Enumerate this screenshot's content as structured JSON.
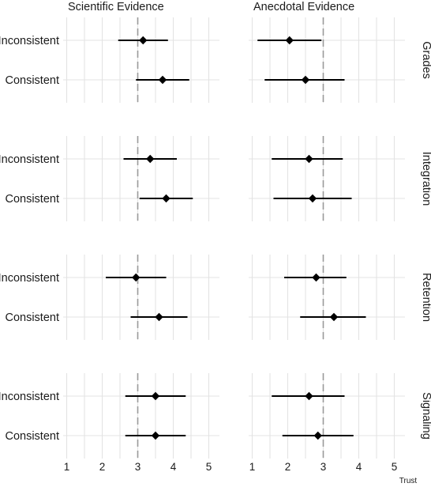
{
  "chart_data": {
    "type": "scatter",
    "subtype": "point-range faceted",
    "columns": [
      "Scientific Evidence",
      "Anecdotal Evidence"
    ],
    "rows": [
      "Grades",
      "Integration",
      "Retention",
      "Signaling"
    ],
    "categories": [
      "Inconsistent",
      "Consistent"
    ],
    "xlabel": "Trust",
    "xlim": [
      0.9,
      5.3
    ],
    "xticks": [
      1,
      2,
      3,
      4,
      5
    ],
    "reference_x": 3,
    "grid": true,
    "points": [
      {
        "row": "Grades",
        "column": "Scientific Evidence",
        "category": "Inconsistent",
        "estimate": 3.15,
        "low": 2.45,
        "high": 3.85
      },
      {
        "row": "Grades",
        "column": "Scientific Evidence",
        "category": "Consistent",
        "estimate": 3.7,
        "low": 2.95,
        "high": 4.45
      },
      {
        "row": "Grades",
        "column": "Anecdotal Evidence",
        "category": "Inconsistent",
        "estimate": 2.05,
        "low": 1.15,
        "high": 2.95
      },
      {
        "row": "Grades",
        "column": "Anecdotal Evidence",
        "category": "Consistent",
        "estimate": 2.5,
        "low": 1.35,
        "high": 3.6
      },
      {
        "row": "Integration",
        "column": "Scientific Evidence",
        "category": "Inconsistent",
        "estimate": 3.35,
        "low": 2.6,
        "high": 4.1
      },
      {
        "row": "Integration",
        "column": "Scientific Evidence",
        "category": "Consistent",
        "estimate": 3.8,
        "low": 3.05,
        "high": 4.55
      },
      {
        "row": "Integration",
        "column": "Anecdotal Evidence",
        "category": "Inconsistent",
        "estimate": 2.6,
        "low": 1.55,
        "high": 3.55
      },
      {
        "row": "Integration",
        "column": "Anecdotal Evidence",
        "category": "Consistent",
        "estimate": 2.7,
        "low": 1.6,
        "high": 3.8
      },
      {
        "row": "Retention",
        "column": "Scientific Evidence",
        "category": "Inconsistent",
        "estimate": 2.95,
        "low": 2.1,
        "high": 3.8
      },
      {
        "row": "Retention",
        "column": "Scientific Evidence",
        "category": "Consistent",
        "estimate": 3.6,
        "low": 2.8,
        "high": 4.4
      },
      {
        "row": "Retention",
        "column": "Anecdotal Evidence",
        "category": "Inconsistent",
        "estimate": 2.8,
        "low": 1.9,
        "high": 3.65
      },
      {
        "row": "Retention",
        "column": "Anecdotal Evidence",
        "category": "Consistent",
        "estimate": 3.3,
        "low": 2.35,
        "high": 4.2
      },
      {
        "row": "Signaling",
        "column": "Scientific Evidence",
        "category": "Inconsistent",
        "estimate": 3.5,
        "low": 2.65,
        "high": 4.35
      },
      {
        "row": "Signaling",
        "column": "Scientific Evidence",
        "category": "Consistent",
        "estimate": 3.5,
        "low": 2.65,
        "high": 4.35
      },
      {
        "row": "Signaling",
        "column": "Anecdotal Evidence",
        "category": "Inconsistent",
        "estimate": 2.6,
        "low": 1.55,
        "high": 3.6
      },
      {
        "row": "Signaling",
        "column": "Anecdotal Evidence",
        "category": "Consistent",
        "estimate": 2.85,
        "low": 1.85,
        "high": 3.85
      }
    ]
  }
}
